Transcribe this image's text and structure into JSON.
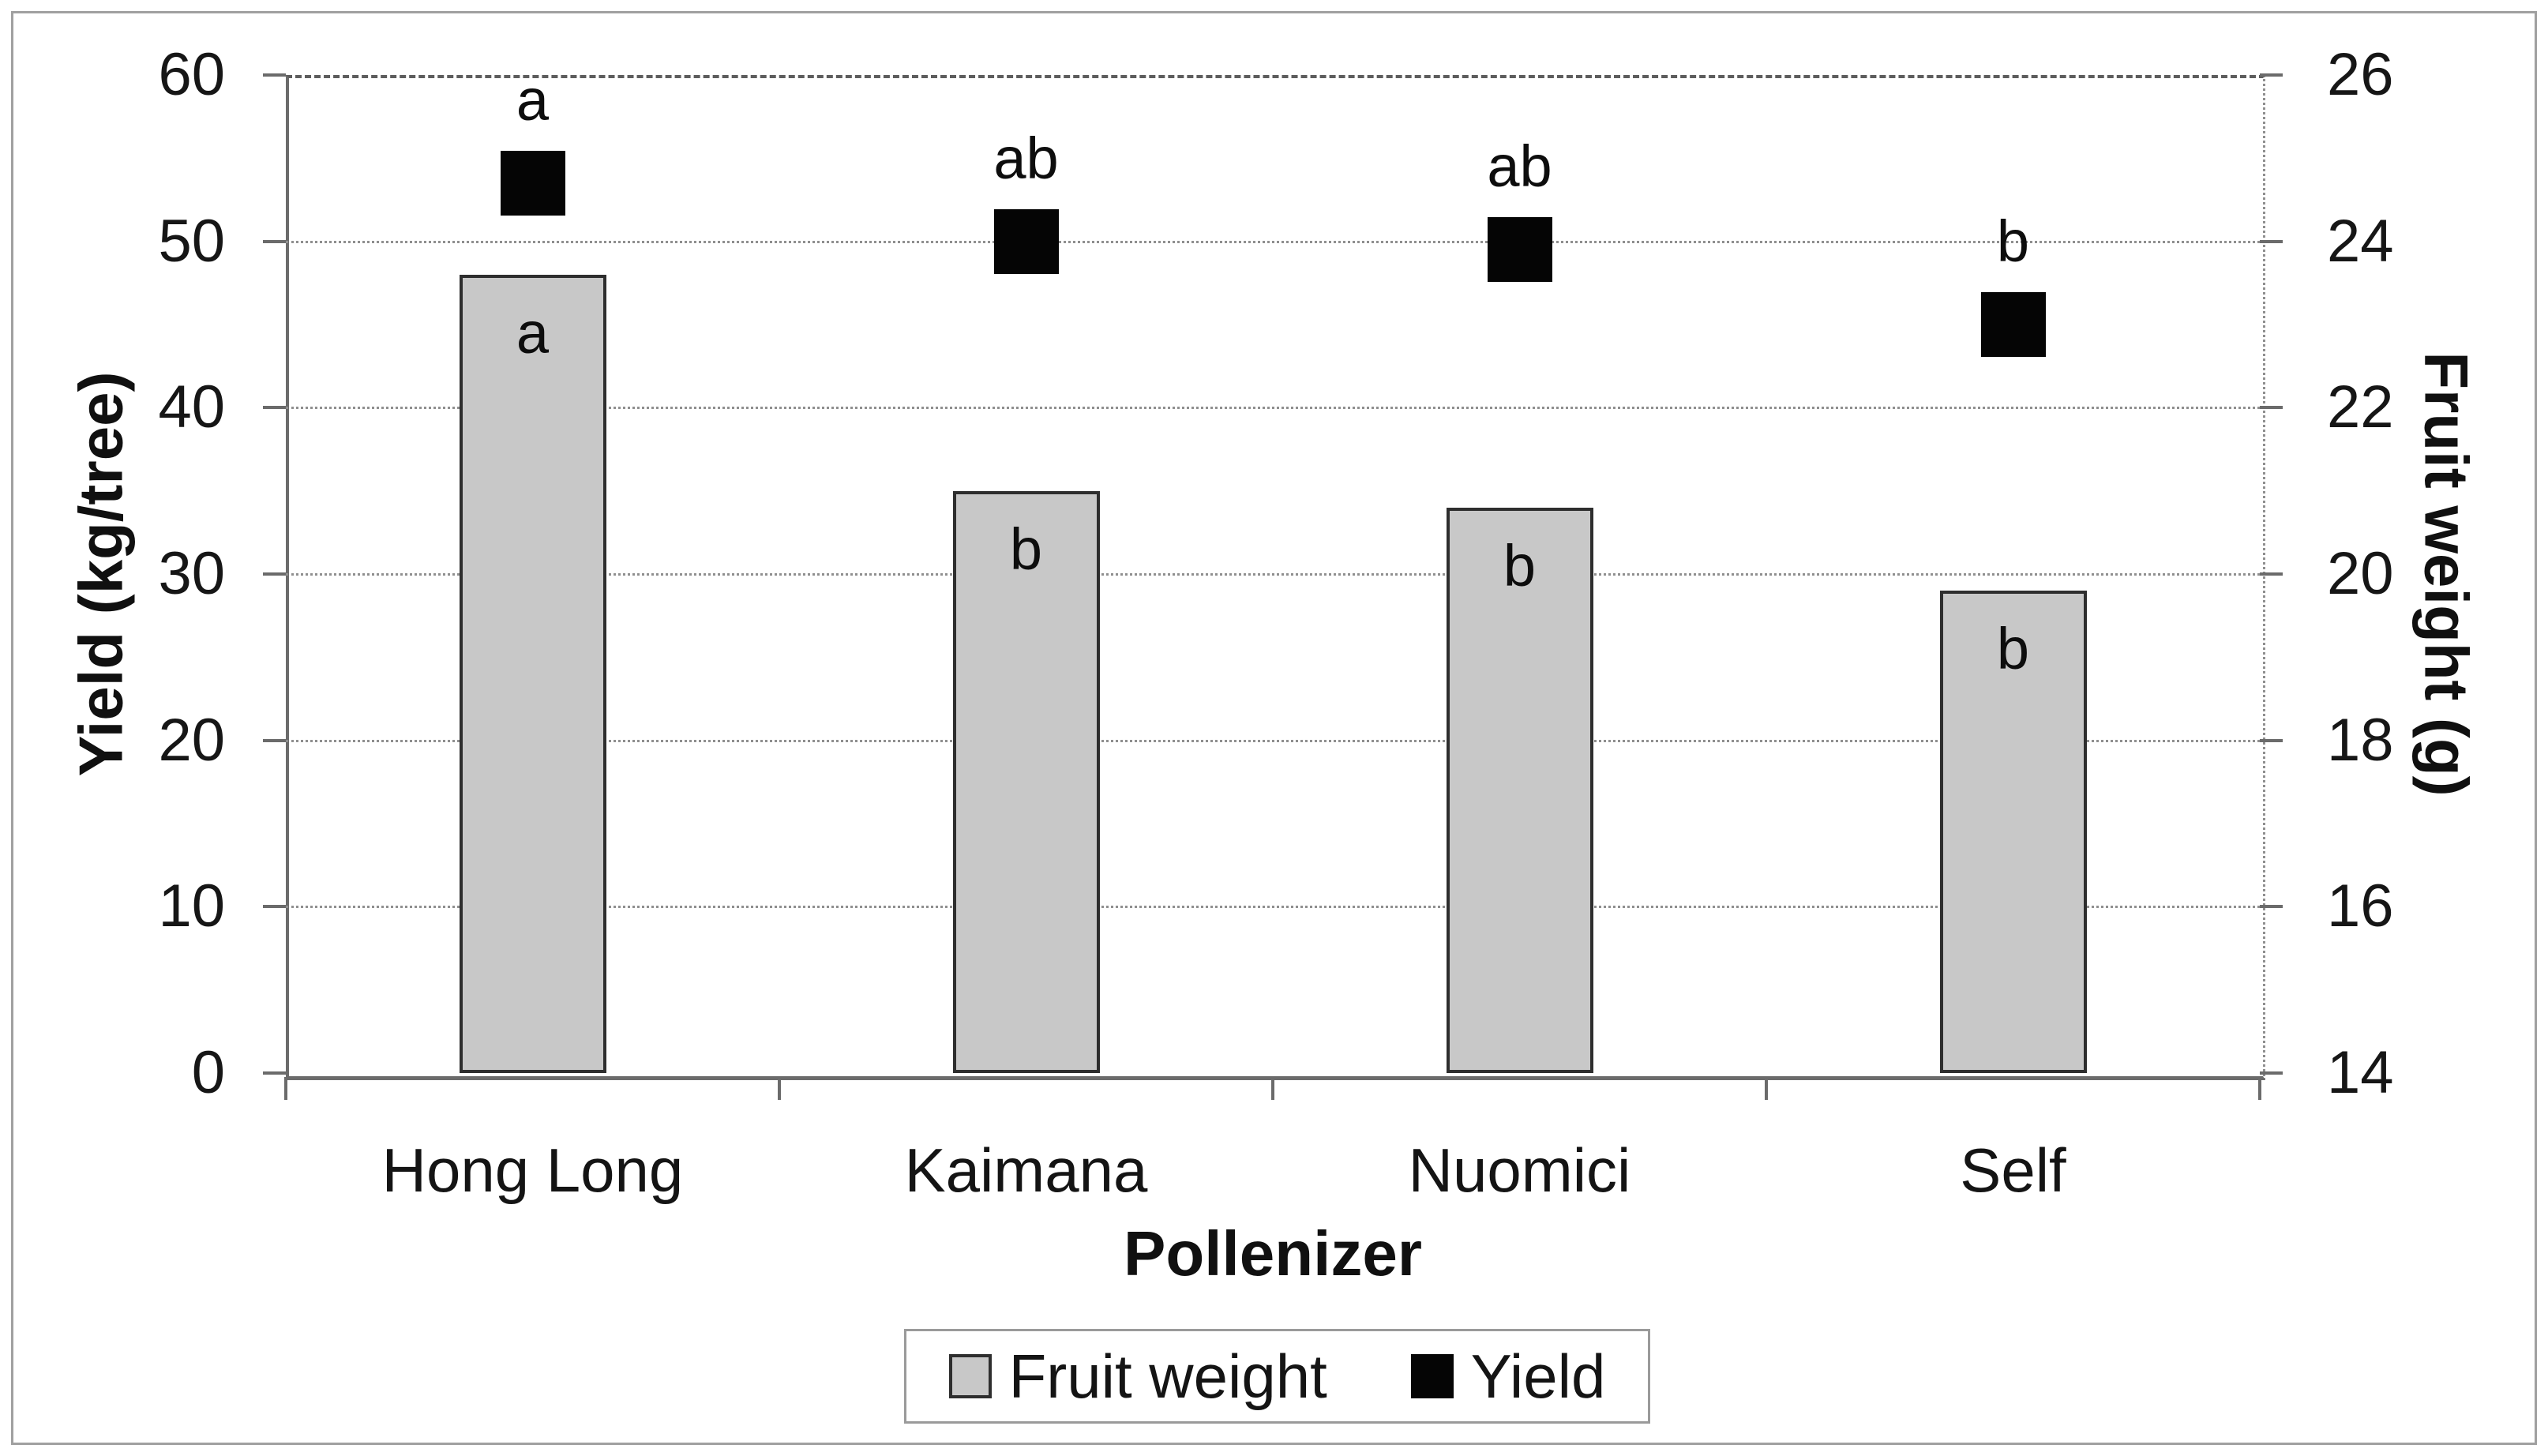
{
  "figure": {
    "background": "#ffffff",
    "border_color": "#a0a0a0"
  },
  "chart_data": {
    "type": "combo",
    "categories": [
      "Hong Long",
      "Kaimana",
      "Nuomici",
      "Self"
    ],
    "series": [
      {
        "name": "Fruit weight",
        "type": "bar",
        "axis": "right",
        "unit": "g",
        "values": [
          23.6,
          21.0,
          20.8,
          19.8
        ],
        "significance_letters": [
          "a",
          "b",
          "b",
          "b"
        ],
        "fill": "#c8c8c8",
        "border": "#2e2e2e"
      },
      {
        "name": "Yield",
        "type": "square-marker",
        "axis": "left",
        "unit": "kg/tree",
        "values": [
          53.5,
          50,
          49.5,
          45
        ],
        "significance_letters": [
          "a",
          "ab",
          "ab",
          "b"
        ],
        "fill": "#050505"
      }
    ],
    "left_axis": {
      "label": "Yield (kg/tree)",
      "min": 0,
      "max": 60,
      "step": 10,
      "ticks": [
        "0",
        "10",
        "20",
        "30",
        "40",
        "50",
        "60"
      ]
    },
    "right_axis": {
      "label": "Fruit weight (g)",
      "min": 14,
      "max": 26,
      "step": 2,
      "ticks": [
        "14",
        "16",
        "18",
        "20",
        "22",
        "24",
        "26"
      ]
    },
    "x_axis": {
      "label": "Pollenizer"
    },
    "grid": "horizontal-dotted",
    "legend": {
      "position": "bottom",
      "items": [
        {
          "label": "Fruit weight",
          "swatch": "#c8c8c8"
        },
        {
          "label": "Yield",
          "swatch": "#050505"
        }
      ]
    }
  }
}
